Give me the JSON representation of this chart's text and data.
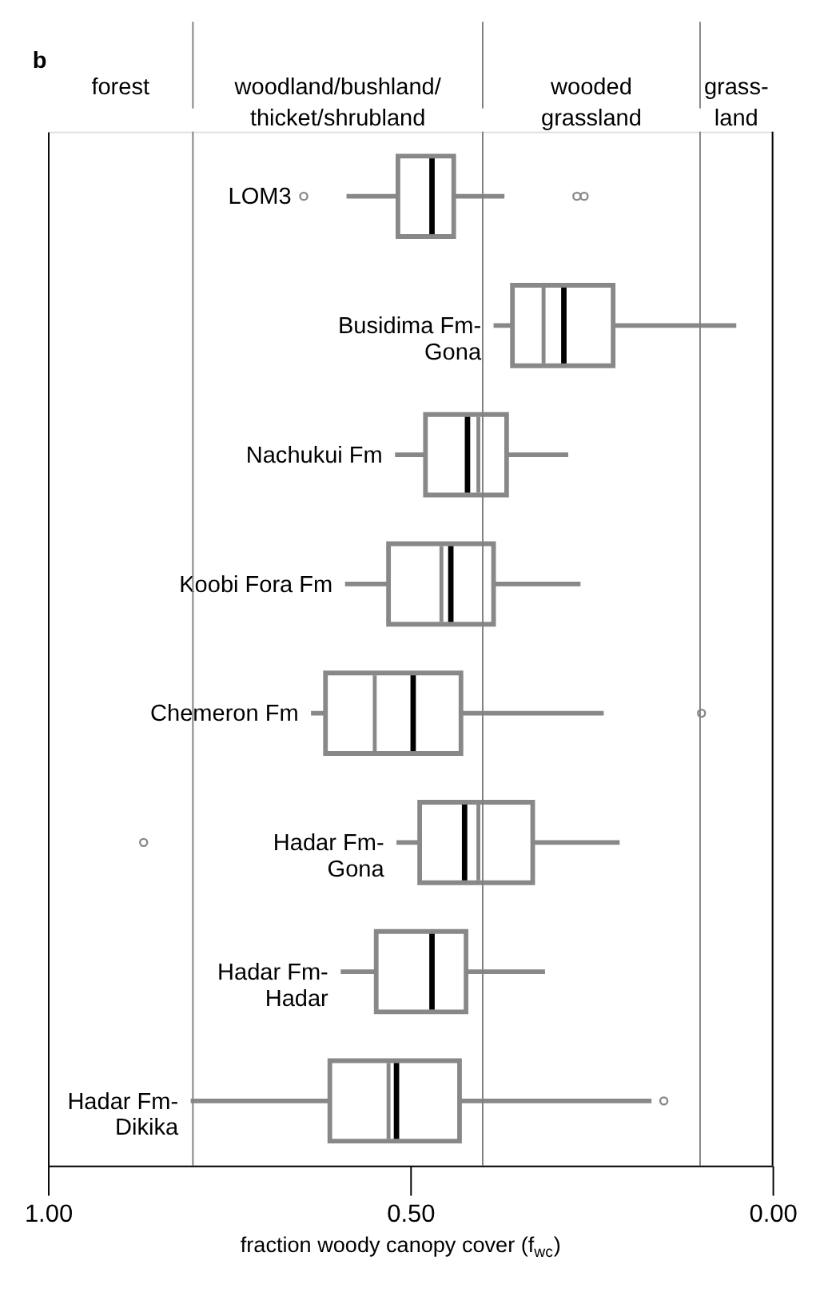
{
  "chart_data": {
    "type": "box",
    "orientation": "horizontal",
    "title": "b",
    "xlabel": "fraction woody canopy cover (f$_{wc}$)",
    "categories": [
      "LOM3",
      "Busidima Fm-\nGona",
      "Nachukui Fm",
      "Koobi Fora Fm",
      "Chemeron Fm",
      "Hadar Fm-\nGona",
      "Hadar Fm-\nHadar",
      "Hadar Fm-\nDikika"
    ],
    "series": [
      {
        "color": "#888888",
        "boxes": [
          {
            "low": 0.37,
            "q1": 0.44,
            "median": 0.47,
            "q3": 0.517,
            "high": 0.588,
            "outliers": [
              0.647,
              0.27,
              0.26
            ]
          },
          {
            "low": 0.05,
            "q1": 0.22,
            "median": 0.288,
            "q3": 0.359,
            "high": 0.385,
            "mean": 0.316
          },
          {
            "low": 0.282,
            "q1": 0.367,
            "median": 0.421,
            "q3": 0.479,
            "high": 0.521,
            "mean": 0.406
          },
          {
            "low": 0.265,
            "q1": 0.385,
            "median": 0.444,
            "q3": 0.53,
            "high": 0.59,
            "mean": 0.457
          },
          {
            "low": 0.233,
            "q1": 0.43,
            "median": 0.496,
            "q3": 0.617,
            "high": 0.637,
            "mean": 0.549,
            "outliers": [
              0.098
            ]
          },
          {
            "low": 0.211,
            "q1": 0.331,
            "median": 0.425,
            "q3": 0.487,
            "high": 0.519,
            "mean": 0.406,
            "outliers": [
              0.868
            ]
          },
          {
            "low": 0.314,
            "q1": 0.423,
            "median": 0.47,
            "q3": 0.547,
            "high": 0.596
          },
          {
            "low": 0.167,
            "q1": 0.432,
            "median": 0.519,
            "q3": 0.611,
            "high": 0.803,
            "mean": 0.53,
            "outliers": [
              0.15
            ]
          }
        ]
      }
    ],
    "xlim": [
      1.0,
      0.0
    ],
    "xticks": [
      {
        "value": 1.0,
        "label": "1.00"
      },
      {
        "value": 0.5,
        "label": "0.50"
      },
      {
        "value": 0.0,
        "label": "0.00"
      }
    ],
    "bands": [
      {
        "axis": "x",
        "from": 1.0,
        "to": 0.8,
        "label": "forest",
        "color": "#ffffff"
      },
      {
        "axis": "x",
        "from": 0.8,
        "to": 0.4,
        "label": "woodland/bushland/\nthicket/shrubland",
        "color": "#ffffff"
      },
      {
        "axis": "x",
        "from": 0.4,
        "to": 0.1,
        "label": "wooded\ngrassland",
        "color": "#ffffff"
      },
      {
        "axis": "x",
        "from": 0.1,
        "to": 0.0,
        "label": "grass-\nland",
        "color": "#ffffff"
      }
    ],
    "grid": false
  }
}
